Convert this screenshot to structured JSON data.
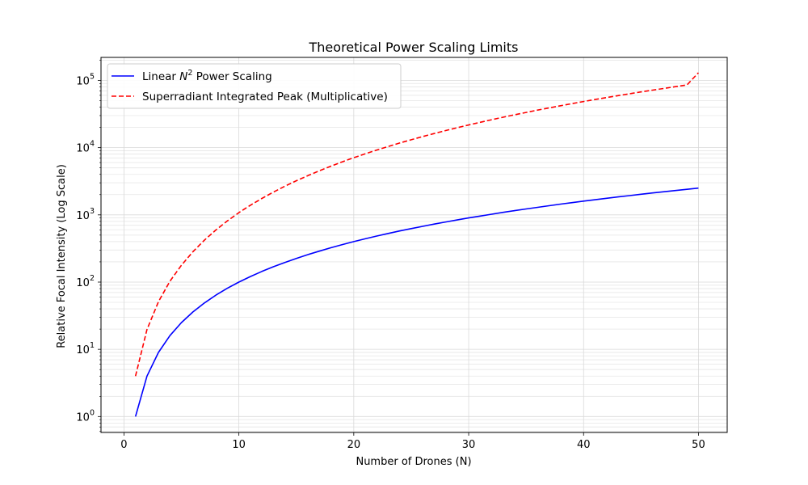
{
  "chart_data": {
    "type": "line",
    "title": "Theoretical Power Scaling Limits",
    "xlabel": "Number of Drones (N)",
    "ylabel": "Relative Focal Intensity (Log Scale)",
    "xlim": [
      -2.0,
      52.5
    ],
    "ylim": [
      0.58,
      220000
    ],
    "yscale": "log",
    "grid": true,
    "legend_position": "upper-left",
    "x_ticks": [
      {
        "value": 0,
        "label": "0"
      },
      {
        "value": 10,
        "label": "10"
      },
      {
        "value": 20,
        "label": "20"
      },
      {
        "value": 30,
        "label": "30"
      },
      {
        "value": 40,
        "label": "40"
      },
      {
        "value": 50,
        "label": "50"
      }
    ],
    "y_ticks": [
      {
        "value": 1,
        "base": "10",
        "exp": "0"
      },
      {
        "value": 10,
        "base": "10",
        "exp": "1"
      },
      {
        "value": 100,
        "base": "10",
        "exp": "2"
      },
      {
        "value": 1000,
        "base": "10",
        "exp": "3"
      },
      {
        "value": 10000,
        "base": "10",
        "exp": "4"
      },
      {
        "value": 100000,
        "base": "10",
        "exp": "5"
      }
    ],
    "x": [
      1,
      2,
      3,
      4,
      5,
      6,
      7,
      8,
      9,
      10,
      11,
      12,
      13,
      14,
      15,
      16,
      17,
      18,
      19,
      20,
      21,
      22,
      23,
      24,
      25,
      26,
      27,
      28,
      29,
      30,
      31,
      32,
      33,
      34,
      35,
      36,
      37,
      38,
      39,
      40,
      41,
      42,
      43,
      44,
      45,
      46,
      47,
      48,
      49,
      50
    ],
    "series": [
      {
        "name_prefix": "Linear ",
        "name_math": "N",
        "name_sup": "2",
        "name_suffix": " Power Scaling",
        "color": "#0000ff",
        "dash": "solid",
        "values": [
          1,
          4,
          9,
          16,
          25,
          36,
          49,
          64,
          81,
          100,
          121,
          144,
          169,
          196,
          225,
          256,
          289,
          324,
          361,
          400,
          441,
          484,
          529,
          576,
          625,
          676,
          729,
          784,
          841,
          900,
          961,
          1024,
          1089,
          1156,
          1225,
          1296,
          1369,
          1444,
          1521,
          1600,
          1681,
          1764,
          1849,
          1936,
          2025,
          2116,
          2209,
          2304,
          2401,
          2500
        ]
      },
      {
        "name_prefix": "Superradiant Integrated Peak (Multiplicative)",
        "name_math": "",
        "name_sup": "",
        "name_suffix": "",
        "color": "#ff0000",
        "dash": "dashed",
        "values": [
          4,
          19.7,
          51,
          103,
          178,
          283,
          421,
          596,
          814,
          1077,
          1390,
          1756,
          2180,
          2666,
          3216,
          3836,
          4528,
          5297,
          6146,
          7078,
          8097,
          9207,
          10410,
          11711,
          13112,
          14618,
          16231,
          17955,
          19793,
          21749,
          23825,
          26025,
          28353,
          30811,
          33403,
          36131,
          39000,
          42012,
          45170,
          48478,
          51939,
          55555,
          59331,
          63269,
          67372,
          71643,
          76085,
          80702,
          85496,
          130000
        ]
      }
    ]
  }
}
